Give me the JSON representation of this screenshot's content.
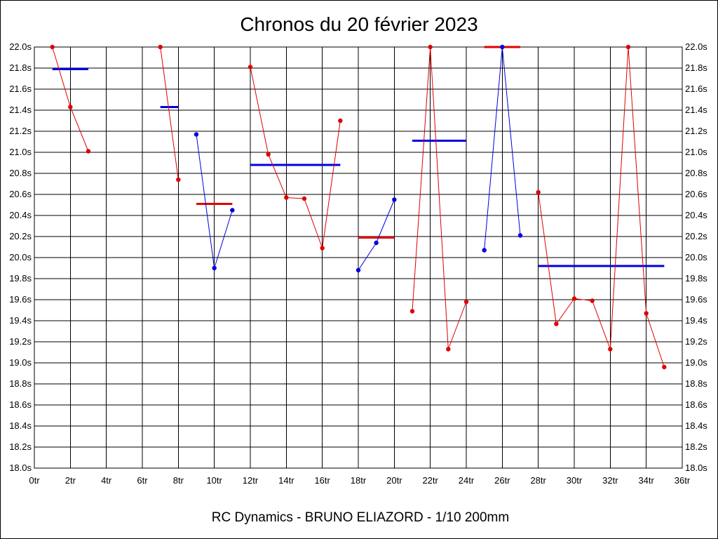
{
  "chart_data": {
    "type": "line",
    "title": "Chronos du 20 février 2023",
    "footer": "RC Dynamics - BRUNO ELIAZORD - 1/10 200mm",
    "xlim": [
      0,
      36
    ],
    "ylim": [
      18.0,
      22.0
    ],
    "x_ticks": [
      {
        "value": 0,
        "label": "0tr"
      },
      {
        "value": 2,
        "label": "2tr"
      },
      {
        "value": 4,
        "label": "4tr"
      },
      {
        "value": 6,
        "label": "6tr"
      },
      {
        "value": 8,
        "label": "8tr"
      },
      {
        "value": 10,
        "label": "10tr"
      },
      {
        "value": 12,
        "label": "12tr"
      },
      {
        "value": 14,
        "label": "14tr"
      },
      {
        "value": 16,
        "label": "16tr"
      },
      {
        "value": 18,
        "label": "18tr"
      },
      {
        "value": 20,
        "label": "20tr"
      },
      {
        "value": 22,
        "label": "22tr"
      },
      {
        "value": 24,
        "label": "24tr"
      },
      {
        "value": 26,
        "label": "26tr"
      },
      {
        "value": 28,
        "label": "28tr"
      },
      {
        "value": 30,
        "label": "30tr"
      },
      {
        "value": 32,
        "label": "32tr"
      },
      {
        "value": 34,
        "label": "34tr"
      },
      {
        "value": 36,
        "label": "36tr"
      }
    ],
    "y_ticks": [
      {
        "value": 18.0,
        "label": "18.0s"
      },
      {
        "value": 18.2,
        "label": "18.2s"
      },
      {
        "value": 18.4,
        "label": "18.4s"
      },
      {
        "value": 18.6,
        "label": "18.6s"
      },
      {
        "value": 18.8,
        "label": "18.8s"
      },
      {
        "value": 19.0,
        "label": "19.0s"
      },
      {
        "value": 19.2,
        "label": "19.2s"
      },
      {
        "value": 19.4,
        "label": "19.4s"
      },
      {
        "value": 19.6,
        "label": "19.6s"
      },
      {
        "value": 19.8,
        "label": "19.8s"
      },
      {
        "value": 20.0,
        "label": "20.0s"
      },
      {
        "value": 20.2,
        "label": "20.2s"
      },
      {
        "value": 20.4,
        "label": "20.4s"
      },
      {
        "value": 20.6,
        "label": "20.6s"
      },
      {
        "value": 20.8,
        "label": "20.8s"
      },
      {
        "value": 21.0,
        "label": "21.0s"
      },
      {
        "value": 21.2,
        "label": "21.2s"
      },
      {
        "value": 21.4,
        "label": "21.4s"
      },
      {
        "value": 21.6,
        "label": "21.6s"
      },
      {
        "value": 21.8,
        "label": "21.8s"
      },
      {
        "value": 22.0,
        "label": "22.0s"
      }
    ],
    "grid": true,
    "series": [
      {
        "color": "#e00000",
        "points": [
          [
            1,
            22.0
          ],
          [
            2,
            21.43
          ],
          [
            3,
            21.01
          ]
        ],
        "average": {
          "x": [
            1,
            3
          ],
          "y": 21.79,
          "color": "#0000e0"
        }
      },
      {
        "color": "#e00000",
        "points": [
          [
            7,
            22.0
          ],
          [
            8,
            20.74
          ]
        ],
        "average": {
          "x": [
            7,
            8
          ],
          "y": 21.43,
          "color": "#0000e0"
        }
      },
      {
        "color": "#0000e0",
        "points": [
          [
            9,
            21.17
          ],
          [
            10,
            19.9
          ],
          [
            11,
            20.45
          ]
        ],
        "average": {
          "x": [
            9,
            11
          ],
          "y": 20.51,
          "color": "#e00000"
        }
      },
      {
        "color": "#e00000",
        "points": [
          [
            12,
            21.81
          ],
          [
            13,
            20.98
          ],
          [
            14,
            20.57
          ],
          [
            15,
            20.56
          ],
          [
            16,
            20.09
          ],
          [
            17,
            21.3
          ]
        ],
        "average": {
          "x": [
            12,
            17
          ],
          "y": 20.88,
          "color": "#0000e0"
        }
      },
      {
        "color": "#0000e0",
        "points": [
          [
            18,
            19.88
          ],
          [
            19,
            20.14
          ],
          [
            20,
            20.55
          ]
        ],
        "average": {
          "x": [
            18,
            20
          ],
          "y": 20.19,
          "color": "#e00000"
        }
      },
      {
        "color": "#e00000",
        "points": [
          [
            21,
            19.49
          ],
          [
            22,
            22.0
          ],
          [
            23,
            19.13
          ],
          [
            24,
            19.58
          ]
        ],
        "average": {
          "x": [
            21,
            24
          ],
          "y": 21.11,
          "color": "#0000e0"
        }
      },
      {
        "color": "#0000e0",
        "points": [
          [
            25,
            20.07
          ],
          [
            26,
            22.0
          ],
          [
            27,
            20.21
          ]
        ],
        "average": {
          "x": [
            25,
            27
          ],
          "y": 22.0,
          "color": "#e00000"
        }
      },
      {
        "color": "#e00000",
        "points": [
          [
            28,
            20.62
          ],
          [
            29,
            19.37
          ],
          [
            30,
            19.61
          ],
          [
            31,
            19.59
          ],
          [
            32,
            19.13
          ],
          [
            33,
            22.0
          ],
          [
            34,
            19.47
          ],
          [
            35,
            18.96
          ]
        ],
        "average": {
          "x": [
            28,
            35
          ],
          "y": 19.92,
          "color": "#0000e0"
        }
      }
    ]
  }
}
